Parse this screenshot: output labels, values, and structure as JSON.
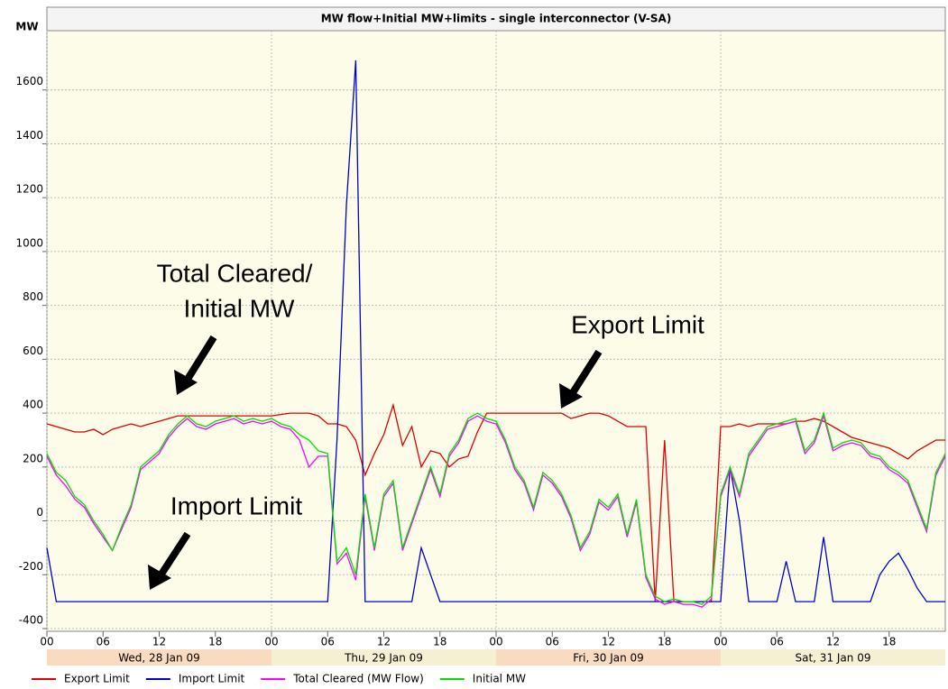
{
  "chart_data": {
    "type": "line",
    "title": "MW flow+Initial MW+limits - single interconnector (V-SA)",
    "y_label": "MW",
    "xlim": [
      0,
      96
    ],
    "ylim": [
      -410,
      1800
    ],
    "yticks": [
      -400,
      -200,
      0,
      200,
      400,
      600,
      800,
      1000,
      1200,
      1400,
      1600
    ],
    "xticks": [
      {
        "value": 0,
        "label": "00"
      },
      {
        "value": 6,
        "label": "06"
      },
      {
        "value": 12,
        "label": "12"
      },
      {
        "value": 18,
        "label": "18"
      },
      {
        "value": 24,
        "label": "00"
      },
      {
        "value": 30,
        "label": "06"
      },
      {
        "value": 36,
        "label": "12"
      },
      {
        "value": 42,
        "label": "18"
      },
      {
        "value": 48,
        "label": "00"
      },
      {
        "value": 54,
        "label": "06"
      },
      {
        "value": 60,
        "label": "12"
      },
      {
        "value": 66,
        "label": "18"
      },
      {
        "value": 72,
        "label": "00"
      },
      {
        "value": 78,
        "label": "06"
      },
      {
        "value": 84,
        "label": "12"
      },
      {
        "value": 90,
        "label": "18"
      }
    ],
    "day_start_tick_color": "#ff0000",
    "days": [
      "Wed, 28 Jan 09",
      "Thu, 29 Jan 09",
      "Fri, 30 Jan 09",
      "Sat, 31 Jan 09"
    ],
    "day_colors": [
      "#f9dcc0",
      "#f6f0d2"
    ],
    "grid": true,
    "x": [
      0,
      1,
      2,
      3,
      4,
      5,
      6,
      7,
      8,
      9,
      10,
      11,
      12,
      13,
      14,
      15,
      16,
      17,
      18,
      19,
      20,
      21,
      22,
      23,
      24,
      25,
      26,
      27,
      28,
      29,
      30,
      31,
      32,
      33,
      34,
      35,
      36,
      37,
      38,
      39,
      40,
      41,
      42,
      43,
      44,
      45,
      46,
      47,
      48,
      49,
      50,
      51,
      52,
      53,
      54,
      55,
      56,
      57,
      58,
      59,
      60,
      61,
      62,
      63,
      64,
      65,
      66,
      67,
      68,
      69,
      70,
      71,
      72,
      73,
      74,
      75,
      76,
      77,
      78,
      79,
      80,
      81,
      82,
      83,
      84,
      85,
      86,
      87,
      88,
      89,
      90,
      91,
      92,
      93,
      94,
      95,
      96
    ],
    "series": [
      {
        "name": "Export Limit",
        "color": "#e00000",
        "values": [
          360,
          350,
          340,
          330,
          330,
          340,
          320,
          340,
          350,
          360,
          350,
          360,
          370,
          380,
          390,
          390,
          390,
          390,
          390,
          390,
          390,
          390,
          390,
          390,
          390,
          395,
          400,
          400,
          400,
          390,
          360,
          360,
          350,
          300,
          170,
          250,
          320,
          430,
          280,
          350,
          200,
          260,
          250,
          200,
          230,
          240,
          330,
          400,
          400,
          400,
          400,
          400,
          400,
          400,
          400,
          400,
          380,
          390,
          400,
          400,
          390,
          370,
          350,
          350,
          350,
          -300,
          300,
          -300,
          -300,
          -300,
          -300,
          -300,
          350,
          350,
          360,
          350,
          360,
          360,
          360,
          360,
          370,
          370,
          380,
          370,
          350,
          330,
          310,
          300,
          290,
          280,
          270,
          250,
          230,
          260,
          280,
          300,
          300
        ]
      },
      {
        "name": "Import Limit",
        "color": "#0000d0",
        "values": [
          -100,
          -300,
          -300,
          -300,
          -300,
          -300,
          -300,
          -300,
          -300,
          -300,
          -300,
          -300,
          -300,
          -300,
          -300,
          -300,
          -300,
          -300,
          -300,
          -300,
          -300,
          -300,
          -300,
          -300,
          -300,
          -300,
          -300,
          -300,
          -300,
          -300,
          -300,
          300,
          1170,
          1710,
          -300,
          -300,
          -300,
          -300,
          -300,
          -300,
          -100,
          -200,
          -300,
          -300,
          -300,
          -300,
          -300,
          -300,
          -300,
          -300,
          -300,
          -300,
          -300,
          -300,
          -300,
          -300,
          -300,
          -300,
          -300,
          -300,
          -300,
          -300,
          -300,
          -300,
          -300,
          -300,
          -300,
          -300,
          -300,
          -300,
          -300,
          -300,
          -300,
          200,
          0,
          -300,
          -300,
          -300,
          -300,
          -150,
          -300,
          -300,
          -300,
          -60,
          -300,
          -300,
          -300,
          -300,
          -300,
          -200,
          -150,
          -120,
          -180,
          -250,
          -300,
          -300,
          -300
        ]
      },
      {
        "name": "Total Cleared (MW Flow)",
        "color": "#ff00ff",
        "values": [
          240,
          170,
          130,
          80,
          50,
          -10,
          -60,
          -110,
          -30,
          50,
          190,
          220,
          250,
          310,
          350,
          380,
          350,
          340,
          360,
          370,
          380,
          360,
          370,
          360,
          370,
          350,
          340,
          300,
          200,
          240,
          240,
          -160,
          -120,
          -220,
          90,
          -110,
          90,
          140,
          -110,
          -10,
          90,
          190,
          90,
          240,
          290,
          370,
          390,
          370,
          360,
          290,
          190,
          140,
          40,
          170,
          140,
          90,
          10,
          -110,
          -50,
          70,
          40,
          90,
          -60,
          70,
          -210,
          -290,
          -310,
          -300,
          -310,
          -310,
          -320,
          -290,
          90,
          190,
          90,
          240,
          290,
          340,
          350,
          360,
          370,
          250,
          290,
          390,
          260,
          280,
          290,
          280,
          240,
          230,
          190,
          170,
          140,
          50,
          -40,
          170,
          240
        ]
      },
      {
        "name": "Initial MW",
        "color": "#00e000",
        "values": [
          250,
          180,
          150,
          90,
          60,
          0,
          -50,
          -110,
          -20,
          60,
          200,
          230,
          260,
          320,
          360,
          390,
          360,
          350,
          370,
          380,
          390,
          370,
          380,
          370,
          380,
          360,
          350,
          320,
          300,
          260,
          250,
          -150,
          -100,
          -200,
          100,
          -100,
          100,
          150,
          -100,
          0,
          100,
          200,
          100,
          250,
          300,
          380,
          400,
          380,
          370,
          300,
          200,
          150,
          50,
          180,
          150,
          100,
          20,
          -100,
          -40,
          80,
          50,
          100,
          -50,
          80,
          -200,
          -280,
          -300,
          -290,
          -300,
          -300,
          -310,
          -280,
          100,
          200,
          100,
          250,
          300,
          350,
          360,
          370,
          380,
          260,
          300,
          400,
          270,
          290,
          300,
          290,
          250,
          240,
          200,
          180,
          150,
          60,
          -30,
          180,
          250
        ]
      }
    ],
    "annotations": [
      "Total Cleared/",
      "Initial MW",
      "Export Limit",
      "Import Limit"
    ]
  }
}
